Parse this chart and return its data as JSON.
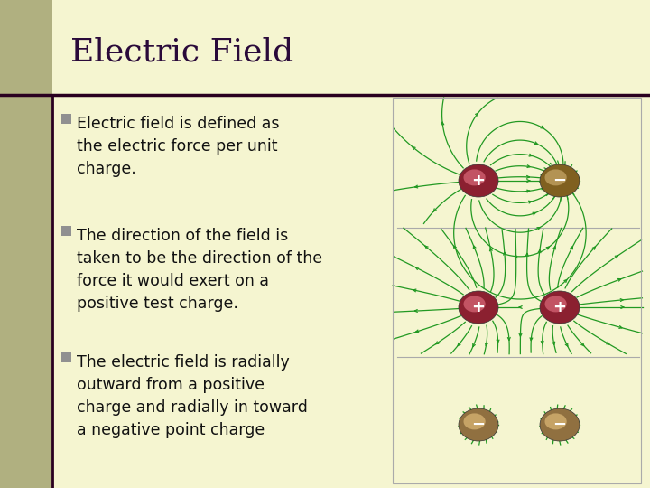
{
  "background_color": "#f5f5d0",
  "title": "Electric Field",
  "title_color": "#2a0a3a",
  "title_fontsize": 26,
  "title_font": "serif",
  "title_fontweight": "normal",
  "accent_bar_color": "#2a0020",
  "left_bar_color": "#b0b080",
  "bullet_color": "#909090",
  "text_color": "#111111",
  "bullet_points": [
    "Electric field is defined as\nthe electric force per unit\ncharge.",
    "The direction of the field is\ntaken to be the direction of the\nforce it would exert on a\npositive test charge.",
    "The electric field is radially\noutward from a positive\ncharge and radially in toward\na negative point charge"
  ],
  "text_fontsize": 12.5,
  "field_line_color": "#229922",
  "pos_charge_color1": "#c05060",
  "pos_charge_color2": "#802030",
  "neg_charge_color1": "#c09060",
  "neg_charge_color2": "#806030",
  "charge_label_color": "#ffffff"
}
